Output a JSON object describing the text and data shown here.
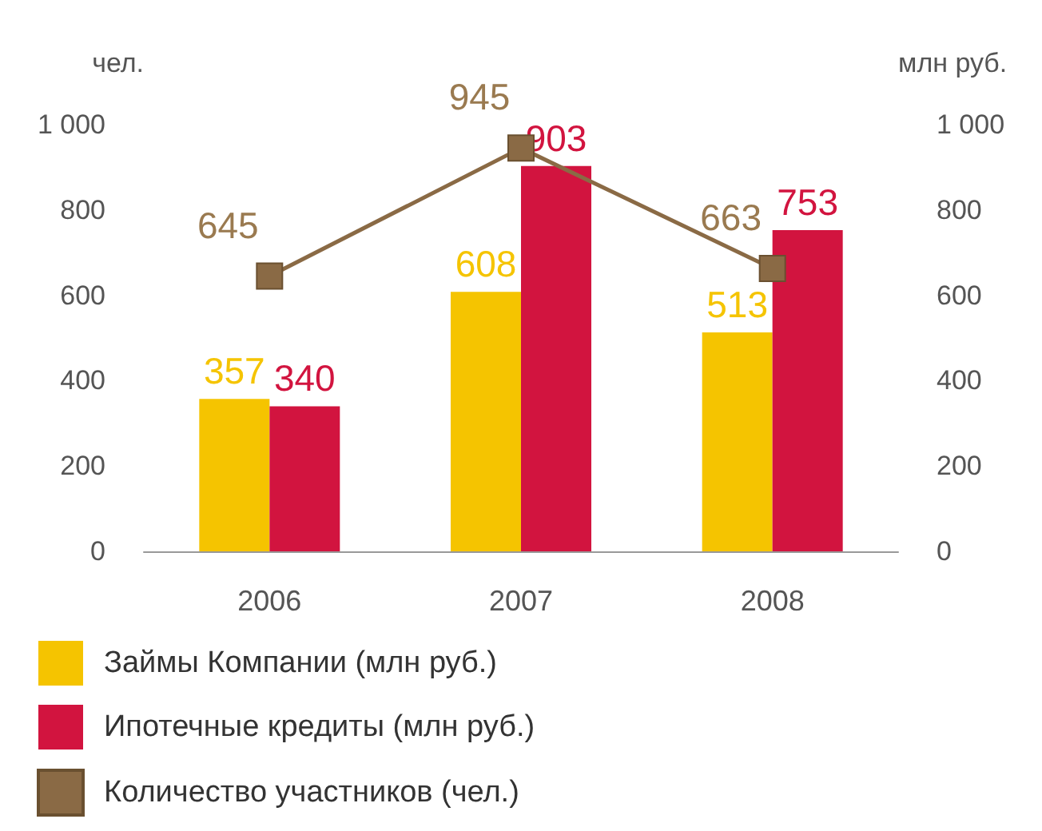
{
  "chart_data": {
    "type": "bar",
    "categories": [
      "2006",
      "2007",
      "2008"
    ],
    "ylabel": "чел.",
    "y2label": "млн руб.",
    "ylim": [
      0,
      1000
    ],
    "yticks": [
      0,
      200,
      400,
      600,
      800,
      {
        "value": 1000,
        "label": "1 000"
      }
    ],
    "y2lim": [
      0,
      1000
    ],
    "y2ticks": [
      0,
      200,
      400,
      600,
      800,
      {
        "value": 1000,
        "label": "1 000"
      }
    ],
    "series": [
      {
        "name": "Займы Компании (млн руб.)",
        "color": "#f5c400",
        "values": [
          357,
          608,
          513
        ],
        "axis": "y2"
      },
      {
        "name": "Ипотечные кредиты (млн руб.)",
        "color": "#d2143f",
        "values": [
          340,
          903,
          753
        ],
        "axis": "y2"
      },
      {
        "name": "Количество участников (чел.)",
        "type": "line",
        "color": "#8a6a45",
        "values": [
          645,
          945,
          663
        ],
        "axis": "y"
      }
    ],
    "data_labels": true,
    "marker": "square",
    "line_style": "solid",
    "grid": false,
    "legend": "bottom"
  }
}
